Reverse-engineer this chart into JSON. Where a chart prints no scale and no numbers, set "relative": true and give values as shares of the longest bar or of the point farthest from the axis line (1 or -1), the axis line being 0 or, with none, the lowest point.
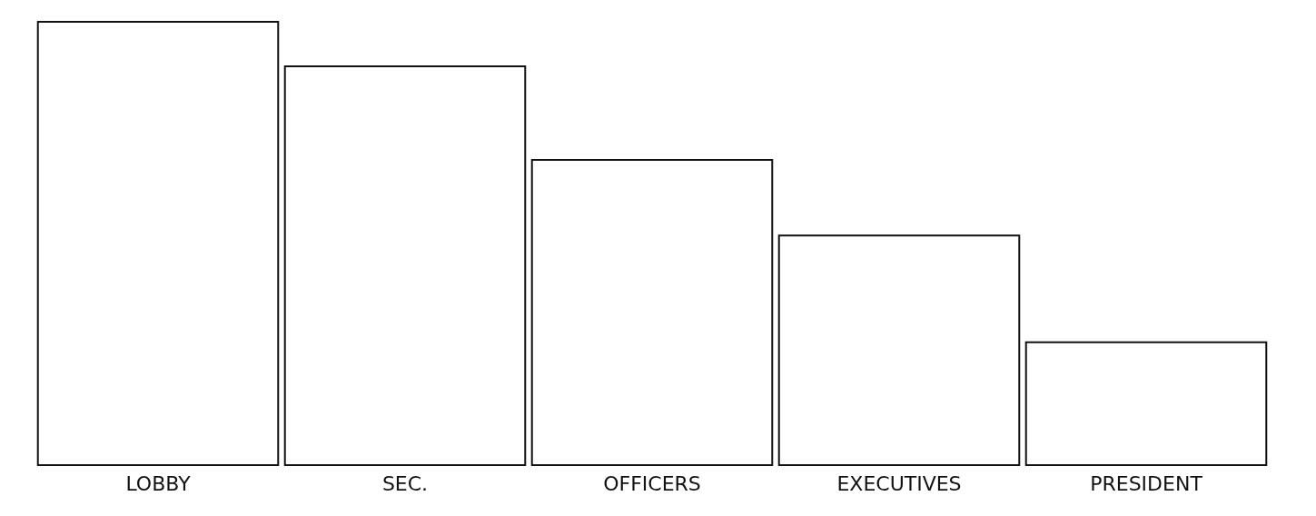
{
  "chart_data": {
    "type": "bar",
    "relative": true,
    "categories": [
      "LOBBY",
      "SEC.",
      "OFFICERS",
      "EXECUTIVES",
      "PRESIDENT"
    ],
    "values": [
      1,
      0.9,
      0.69,
      0.52,
      0.28
    ],
    "color": "#ffffff"
  }
}
